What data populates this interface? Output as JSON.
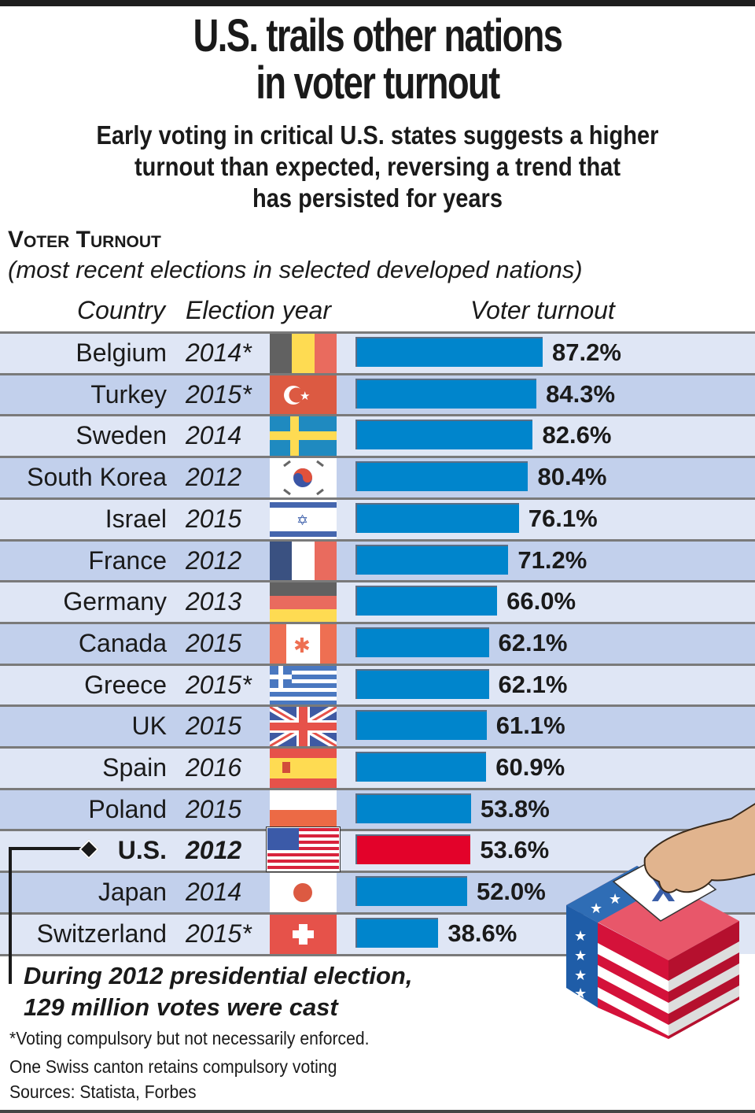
{
  "title_lines": [
    "U.S. trails other nations",
    "in voter turnout"
  ],
  "subtitle_lines": [
    "Early voting in critical U.S. states suggests a higher",
    "turnout than expected, reversing a trend that",
    "has persisted for years"
  ],
  "section": {
    "title": "Voter Turnout",
    "subtitle": "(most recent elections in selected developed nations)"
  },
  "columns": {
    "country": "Country",
    "year": "Election year",
    "turnout": "Voter turnout"
  },
  "colors": {
    "bar": "#0085cc",
    "us_bar": "#e3022a",
    "row_light": "#dfe6f5",
    "row_dark": "#c2d0ec"
  },
  "chart_data": {
    "type": "bar",
    "orientation": "horizontal",
    "title": "Voter Turnout",
    "subtitle": "(most recent elections in selected developed nations)",
    "xlabel": "Voter turnout",
    "unit": "%",
    "xlim": [
      0,
      100
    ],
    "grid": false,
    "categories": [
      "Belgium",
      "Turkey",
      "Sweden",
      "South Korea",
      "Israel",
      "France",
      "Germany",
      "Canada",
      "Greece",
      "UK",
      "Spain",
      "Poland",
      "U.S.",
      "Japan",
      "Switzerland"
    ],
    "years": [
      "2014*",
      "2015*",
      "2014",
      "2012",
      "2015",
      "2012",
      "2013",
      "2015",
      "2015*",
      "2015",
      "2016",
      "2015",
      "2012",
      "2014",
      "2015*"
    ],
    "flags": [
      "belgium-flag-icon",
      "turkey-flag-icon",
      "sweden-flag-icon",
      "south-korea-flag-icon",
      "israel-flag-icon",
      "france-flag-icon",
      "germany-flag-icon",
      "canada-flag-icon",
      "greece-flag-icon",
      "uk-flag-icon",
      "spain-flag-icon",
      "poland-flag-icon",
      "us-flag-icon",
      "japan-flag-icon",
      "switzerland-flag-icon"
    ],
    "values": [
      87.2,
      84.3,
      82.6,
      80.4,
      76.1,
      71.2,
      66.0,
      62.1,
      62.1,
      61.1,
      60.9,
      53.8,
      53.6,
      52.0,
      38.6
    ],
    "labels": [
      "87.2%",
      "84.3%",
      "82.6%",
      "80.4%",
      "76.1%",
      "71.2%",
      "66.0%",
      "62.1%",
      "62.1%",
      "61.1%",
      "60.9%",
      "53.8%",
      "53.6%",
      "52.0%",
      "38.6%"
    ],
    "highlight": "U.S."
  },
  "annotation": [
    "During 2012 presidential election,",
    "129 million votes were cast"
  ],
  "footnotes": [
    "*Voting compulsory but not necessarily enforced.",
    "One Swiss canton retains compulsory voting",
    "Sources: Statista, Forbes"
  ],
  "illustration": "ballot-box-hand-icon"
}
